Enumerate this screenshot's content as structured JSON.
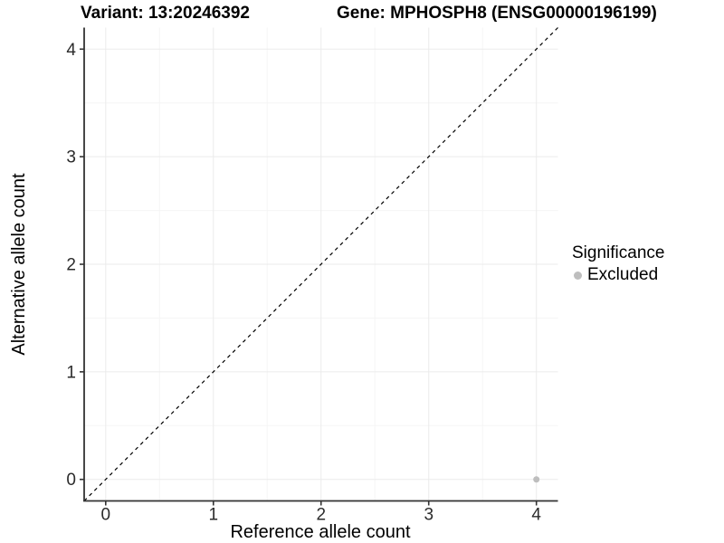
{
  "figure": {
    "variant_title": "Variant: 13:20246392",
    "gene_title": "Gene: MPHOSPH8 (ENSG00000196199)"
  },
  "axes": {
    "x_title": "Reference allele count",
    "y_title": "Alternative allele count"
  },
  "legend": {
    "title": "Significance",
    "items": [
      {
        "label": "Excluded",
        "color": "#bebebe"
      }
    ]
  },
  "chart_data": {
    "type": "scatter",
    "title": "Variant: 13:20246392 — Gene: MPHOSPH8 (ENSG00000196199)",
    "xlabel": "Reference allele count",
    "ylabel": "Alternative allele count",
    "xlim": [
      -0.2,
      4.2
    ],
    "ylim": [
      -0.2,
      4.2
    ],
    "x_ticks": [
      0,
      1,
      2,
      3,
      4
    ],
    "y_ticks": [
      0,
      1,
      2,
      3,
      4
    ],
    "grid": "major+minor",
    "legend_position": "right",
    "series": [
      {
        "name": "Excluded",
        "color": "#bebebe",
        "points": [
          {
            "x": 4,
            "y": 0
          }
        ]
      }
    ],
    "reference_line": {
      "kind": "identity",
      "from": [
        -0.2,
        -0.2
      ],
      "to": [
        4.2,
        4.2
      ],
      "style": "dashed",
      "color": "#000000"
    }
  },
  "style": {
    "grid_major_color": "#ebebeb",
    "grid_minor_color": "#f5f5f5",
    "axis_line_color": "#333333",
    "tick_label_color": "#2b2b2b"
  }
}
